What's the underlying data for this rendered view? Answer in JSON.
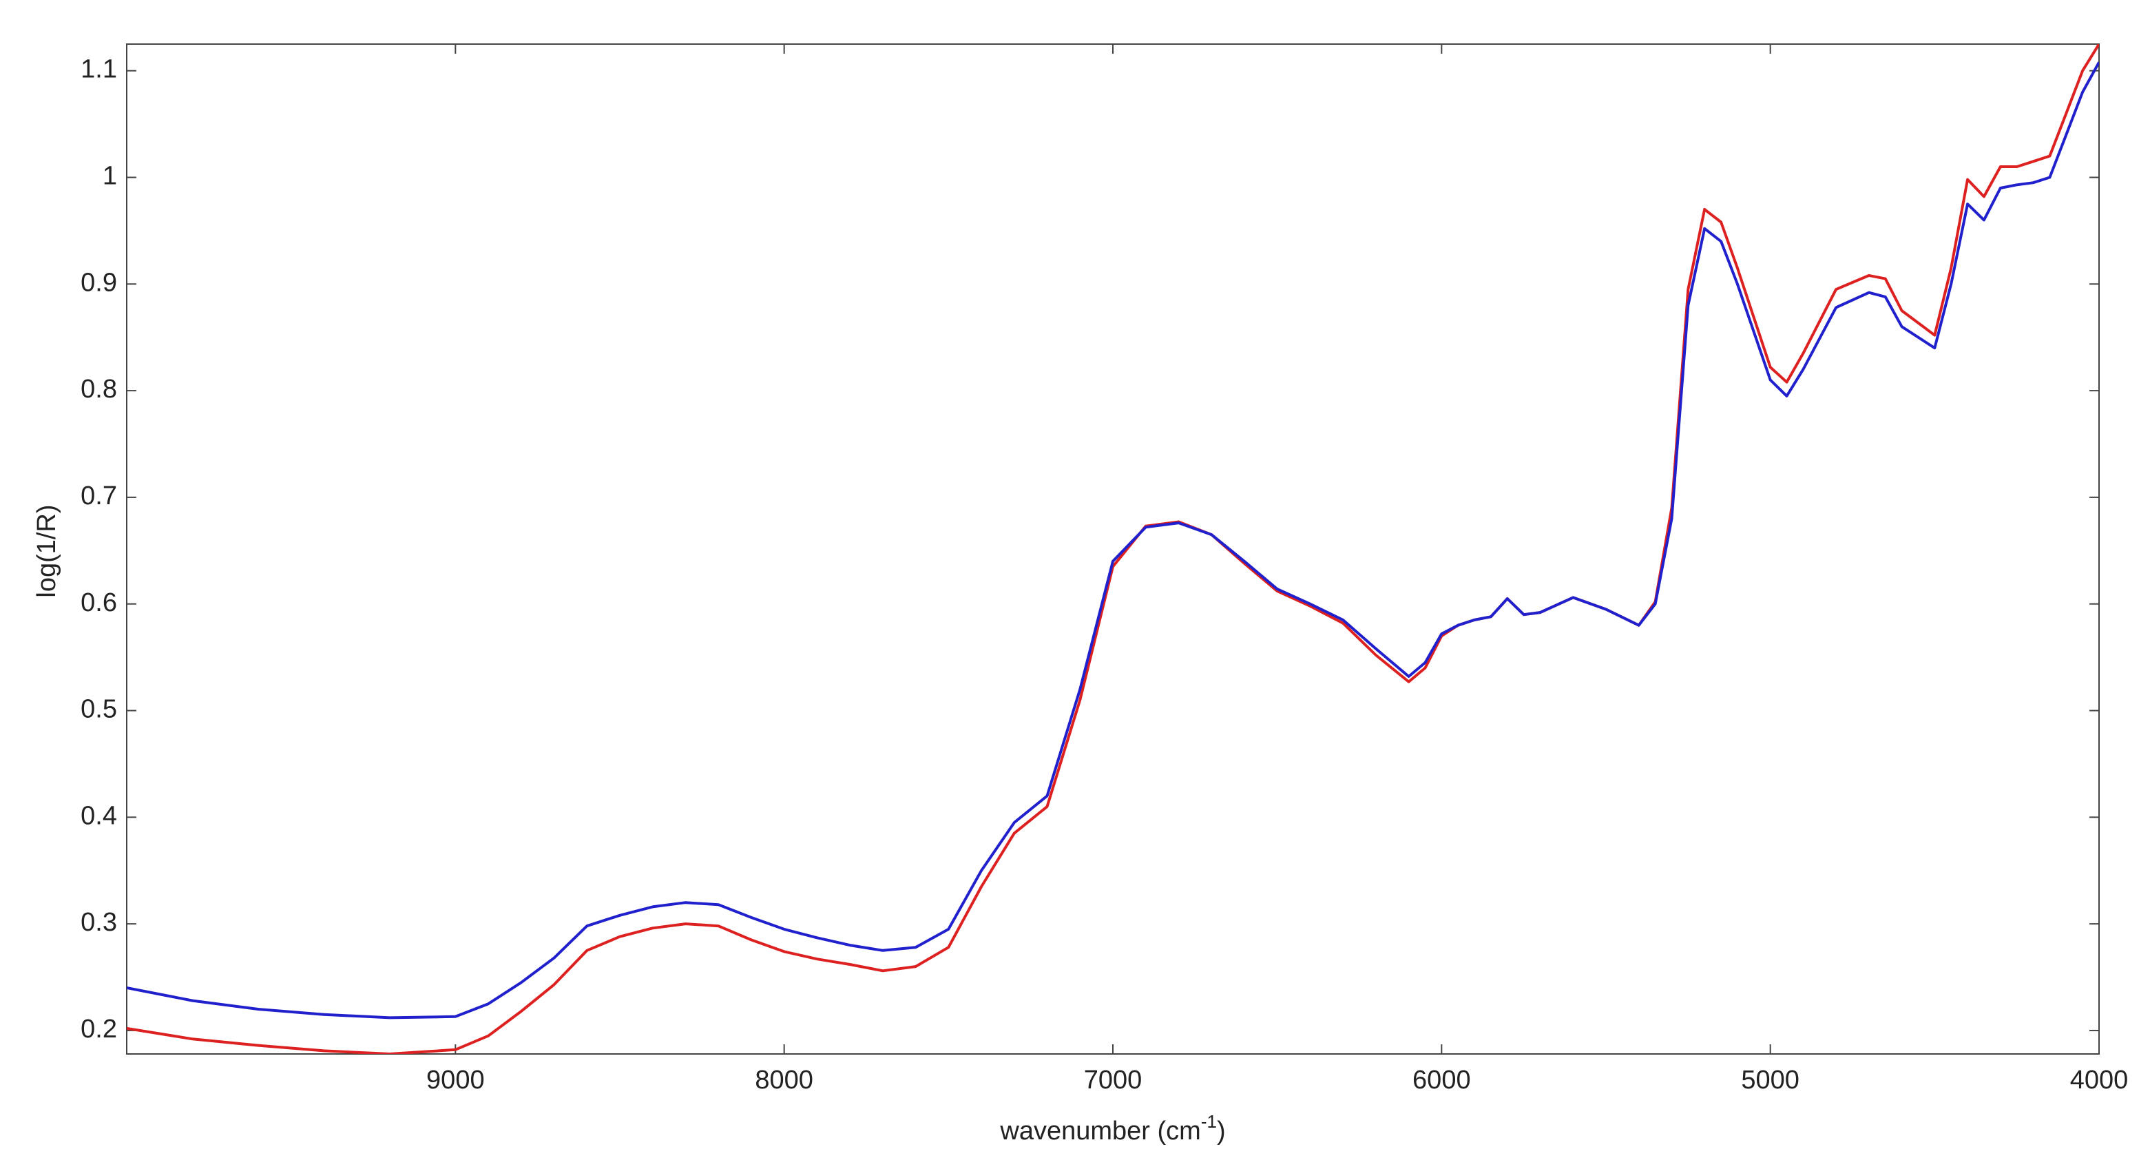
{
  "chart_data": {
    "type": "line",
    "xlabel": [
      "wavenumber (cm",
      "-1",
      ")"
    ],
    "ylabel": "log(1/R)",
    "x": [
      10000,
      9800,
      9600,
      9400,
      9200,
      9000,
      8900,
      8800,
      8700,
      8600,
      8500,
      8400,
      8300,
      8200,
      8100,
      8000,
      7900,
      7800,
      7700,
      7600,
      7500,
      7400,
      7300,
      7200,
      7100,
      7000,
      6900,
      6800,
      6700,
      6600,
      6500,
      6400,
      6300,
      6200,
      6100,
      6050,
      6000,
      5950,
      5900,
      5850,
      5800,
      5750,
      5700,
      5600,
      5500,
      5400,
      5350,
      5300,
      5250,
      5200,
      5150,
      5100,
      5000,
      4950,
      4900,
      4800,
      4700,
      4650,
      4600,
      4500,
      4450,
      4400,
      4350,
      4300,
      4250,
      4200,
      4150,
      4100,
      4050,
      4000
    ],
    "series": [
      {
        "color": "#dd2020",
        "values": [
          0.202,
          0.192,
          0.186,
          0.181,
          0.178,
          0.182,
          0.195,
          0.218,
          0.243,
          0.275,
          0.288,
          0.296,
          0.3,
          0.298,
          0.285,
          0.274,
          0.267,
          0.262,
          0.256,
          0.26,
          0.278,
          0.335,
          0.385,
          0.41,
          0.51,
          0.635,
          0.673,
          0.677,
          0.665,
          0.638,
          0.612,
          0.598,
          0.582,
          0.552,
          0.527,
          0.54,
          0.57,
          0.58,
          0.585,
          0.588,
          0.605,
          0.59,
          0.592,
          0.606,
          0.595,
          0.58,
          0.602,
          0.69,
          0.895,
          0.97,
          0.958,
          0.915,
          0.822,
          0.808,
          0.835,
          0.895,
          0.908,
          0.905,
          0.875,
          0.852,
          0.915,
          0.998,
          0.982,
          1.01,
          1.01,
          1.015,
          1.02,
          1.06,
          1.1,
          1.125
        ]
      },
      {
        "color": "#2020cc",
        "values": [
          0.24,
          0.228,
          0.22,
          0.215,
          0.212,
          0.213,
          0.225,
          0.245,
          0.268,
          0.298,
          0.308,
          0.316,
          0.32,
          0.318,
          0.306,
          0.295,
          0.287,
          0.28,
          0.275,
          0.278,
          0.295,
          0.35,
          0.395,
          0.42,
          0.52,
          0.64,
          0.672,
          0.676,
          0.665,
          0.64,
          0.614,
          0.6,
          0.585,
          0.558,
          0.532,
          0.545,
          0.572,
          0.58,
          0.585,
          0.588,
          0.605,
          0.59,
          0.592,
          0.606,
          0.595,
          0.58,
          0.6,
          0.68,
          0.88,
          0.952,
          0.94,
          0.9,
          0.81,
          0.795,
          0.82,
          0.878,
          0.892,
          0.888,
          0.86,
          0.84,
          0.9,
          0.975,
          0.96,
          0.99,
          0.993,
          0.995,
          1.0,
          1.04,
          1.08,
          1.108
        ]
      }
    ],
    "xlim": [
      10000,
      4000
    ],
    "xticks": [
      9000,
      8000,
      7000,
      6000,
      5000,
      4000
    ],
    "ylim": [
      0.178,
      1.125
    ],
    "yticks": [
      0.2,
      0.3,
      0.4,
      0.5,
      0.6,
      0.7,
      0.8,
      0.9,
      1,
      1.1
    ],
    "grid": false
  }
}
